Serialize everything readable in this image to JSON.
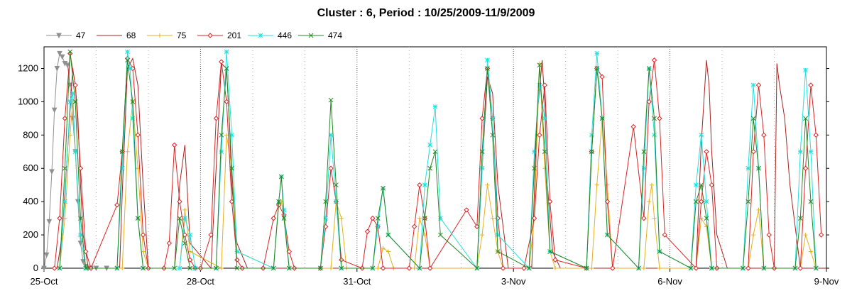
{
  "chart_data": {
    "type": "line",
    "title": "Cluster : 6, Period : 10/25/2009-11/9/2009",
    "xlabel": "",
    "ylabel": "",
    "x_range": [
      "25-Oct",
      "9-Nov"
    ],
    "x_ticks": [
      "25-Oct",
      "28-Oct",
      "31-Oct",
      "3-Nov",
      "6-Nov",
      "9-Nov"
    ],
    "x_tick_days": [
      0,
      3,
      6,
      9,
      12,
      15
    ],
    "ylim": [
      0,
      1330
    ],
    "y_ticks": [
      0,
      200,
      400,
      600,
      800,
      1000,
      1200
    ],
    "grid": "vertical dotted lines at each day",
    "legend_position": "top-left",
    "series": [
      {
        "name": "47",
        "color": "#909090",
        "marker": "triangle-down",
        "x": [
          0,
          0.05,
          0.1,
          0.15,
          0.2,
          0.25,
          0.3,
          0.35,
          0.4,
          0.45,
          0.5,
          0.55,
          0.6,
          0.65,
          0.7,
          0.75,
          0.8,
          0.85,
          0.9,
          1.0,
          1.2
        ],
        "y": [
          0,
          80,
          280,
          580,
          950,
          1200,
          1290,
          1270,
          1230,
          1220,
          1100,
          900,
          700,
          400,
          150,
          40,
          10,
          0,
          0,
          0,
          0
        ]
      },
      {
        "name": "68",
        "color": "#aa2222",
        "marker": "none",
        "x": [
          0.25,
          0.35,
          0.45,
          0.55,
          0.6,
          0.65,
          0.7,
          0.75,
          0.85,
          1.0,
          1.45,
          1.5,
          1.6,
          1.7,
          1.8,
          1.9,
          2.0,
          2.2,
          2.5,
          2.6,
          2.7,
          2.8,
          3.2,
          3.3,
          3.4,
          3.5,
          3.55,
          3.6,
          3.7,
          3.9,
          8.3,
          8.4,
          8.5,
          8.6,
          8.7,
          8.9,
          9.35,
          9.45,
          9.55,
          9.6,
          9.65,
          9.75,
          9.9,
          12.5,
          12.6,
          12.7,
          12.75,
          12.8,
          12.9,
          13.1,
          14.0,
          14.05,
          14.1,
          14.2,
          14.3,
          14.5,
          14.9,
          15.0
        ],
        "y": [
          0,
          200,
          700,
          1200,
          1100,
          900,
          500,
          200,
          0,
          0,
          0,
          450,
          1200,
          1260,
          1100,
          500,
          0,
          0,
          0,
          500,
          740,
          150,
          0,
          600,
          1230,
          1200,
          900,
          500,
          150,
          0,
          0,
          600,
          1150,
          1050,
          500,
          0,
          0,
          900,
          1250,
          1000,
          500,
          100,
          0,
          0,
          750,
          1250,
          1100,
          700,
          200,
          0,
          0,
          1230,
          1100,
          900,
          500,
          0,
          0,
          0
        ]
      },
      {
        "name": "75",
        "color": "#e8b020",
        "marker": "plus",
        "x": [
          0.3,
          0.4,
          0.5,
          0.55,
          0.6,
          0.7,
          0.8,
          1.5,
          1.6,
          1.7,
          1.8,
          1.9,
          2.0,
          2.6,
          2.7,
          2.8,
          3.4,
          3.5,
          3.6,
          3.7,
          4.4,
          4.5,
          4.55,
          4.6,
          4.7,
          5.5,
          5.6,
          5.7,
          5.8,
          6.4,
          6.5,
          6.6,
          6.7,
          7.1,
          7.2,
          7.3,
          7.4,
          8.3,
          8.4,
          8.5,
          8.6,
          8.7,
          8.8,
          9.3,
          9.4,
          9.5,
          9.6,
          9.7,
          9.8,
          10.5,
          10.6,
          10.7,
          10.8,
          10.9,
          11.5,
          11.6,
          11.65,
          11.7,
          11.8,
          12.5,
          12.6,
          12.7,
          12.8,
          13.5,
          13.6,
          13.7,
          13.8,
          14.5,
          14.6,
          14.7,
          14.8
        ],
        "y": [
          0,
          300,
          800,
          1000,
          700,
          200,
          0,
          0,
          700,
          1000,
          600,
          100,
          0,
          0,
          350,
          100,
          0,
          800,
          600,
          100,
          0,
          380,
          400,
          300,
          0,
          0,
          400,
          300,
          0,
          0,
          120,
          100,
          0,
          0,
          300,
          200,
          0,
          0,
          200,
          500,
          300,
          100,
          0,
          0,
          300,
          1230,
          600,
          100,
          0,
          0,
          500,
          900,
          500,
          0,
          0,
          400,
          500,
          300,
          0,
          0,
          300,
          250,
          0,
          0,
          200,
          350,
          0,
          0,
          200,
          100,
          0
        ]
      },
      {
        "name": "201",
        "color": "#dd2222",
        "marker": "diamond",
        "x": [
          0.2,
          0.3,
          0.4,
          0.5,
          0.6,
          0.7,
          0.8,
          0.9,
          1.4,
          1.5,
          1.6,
          1.7,
          1.8,
          1.9,
          2.0,
          2.3,
          2.4,
          2.5,
          2.6,
          2.7,
          2.8,
          2.9,
          3.0,
          3.2,
          3.3,
          3.4,
          3.5,
          3.6,
          3.7,
          3.8,
          4.2,
          4.4,
          4.5,
          4.6,
          4.7,
          4.8,
          5.3,
          5.4,
          5.5,
          5.6,
          5.7,
          6.1,
          6.2,
          6.3,
          6.4,
          6.5,
          7.0,
          7.1,
          7.2,
          7.3,
          7.4,
          8.1,
          8.3,
          8.4,
          8.5,
          8.6,
          8.7,
          8.8,
          9.2,
          9.4,
          9.5,
          9.6,
          9.7,
          9.8,
          10.4,
          10.5,
          10.6,
          10.7,
          10.8,
          10.9,
          11.3,
          11.5,
          11.6,
          11.7,
          11.8,
          11.9,
          12.5,
          12.6,
          12.7,
          12.8,
          12.9,
          13.5,
          13.6,
          13.7,
          13.8,
          13.9,
          14.0,
          14.5,
          14.6,
          14.7,
          14.8,
          14.9
        ],
        "y": [
          0,
          300,
          900,
          1290,
          1100,
          600,
          100,
          0,
          380,
          700,
          1260,
          1200,
          800,
          200,
          0,
          0,
          150,
          740,
          400,
          200,
          50,
          0,
          0,
          200,
          900,
          1240,
          1000,
          400,
          50,
          0,
          0,
          300,
          380,
          320,
          100,
          0,
          0,
          250,
          600,
          400,
          50,
          0,
          220,
          300,
          250,
          0,
          0,
          250,
          500,
          300,
          0,
          350,
          250,
          900,
          1200,
          900,
          300,
          0,
          0,
          300,
          800,
          1100,
          400,
          50,
          0,
          700,
          1200,
          1150,
          400,
          0,
          850,
          300,
          1000,
          1250,
          900,
          200,
          0,
          400,
          700,
          500,
          0,
          0,
          700,
          1100,
          800,
          200,
          0,
          0,
          600,
          1100,
          800,
          200
        ]
      },
      {
        "name": "446",
        "color": "#22e0e0",
        "marker": "star",
        "x": [
          0.3,
          0.4,
          0.5,
          0.55,
          0.6,
          0.7,
          0.8,
          1.4,
          1.5,
          1.6,
          1.65,
          1.7,
          1.8,
          1.9,
          2.6,
          2.7,
          2.8,
          2.9,
          3.3,
          3.4,
          3.5,
          3.6,
          3.7,
          4.4,
          4.5,
          4.55,
          4.6,
          4.7,
          5.3,
          5.4,
          5.5,
          5.6,
          5.7,
          6.3,
          6.4,
          6.5,
          6.6,
          7.2,
          7.3,
          7.4,
          7.5,
          7.6,
          8.3,
          8.4,
          8.5,
          8.6,
          8.7,
          9.3,
          9.4,
          9.5,
          9.6,
          9.7,
          10.4,
          10.5,
          10.6,
          10.7,
          10.8,
          11.4,
          11.5,
          11.6,
          11.7,
          11.8,
          12.4,
          12.5,
          12.6,
          12.7,
          12.8,
          13.4,
          13.5,
          13.6,
          13.7,
          13.8,
          14.4,
          14.5,
          14.6,
          14.7,
          14.8
        ],
        "y": [
          0,
          400,
          1000,
          1050,
          700,
          200,
          0,
          0,
          600,
          1300,
          1200,
          900,
          300,
          0,
          0,
          300,
          200,
          0,
          0,
          700,
          1300,
          800,
          100,
          0,
          400,
          550,
          350,
          0,
          0,
          300,
          800,
          400,
          0,
          0,
          250,
          480,
          200,
          0,
          500,
          740,
          970,
          300,
          0,
          600,
          1250,
          900,
          200,
          0,
          700,
          1100,
          900,
          100,
          0,
          800,
          1290,
          900,
          200,
          0,
          600,
          1200,
          800,
          100,
          0,
          500,
          800,
          400,
          0,
          0,
          600,
          1100,
          600,
          0,
          0,
          700,
          1190,
          700,
          0
        ]
      },
      {
        "name": "474",
        "color": "#228822",
        "marker": "cross",
        "x": [
          0.3,
          0.4,
          0.5,
          0.6,
          0.7,
          0.8,
          1.4,
          1.5,
          1.6,
          1.7,
          1.8,
          1.9,
          2.5,
          2.6,
          2.7,
          2.8,
          3.3,
          3.4,
          3.5,
          3.6,
          3.7,
          4.4,
          4.5,
          4.55,
          4.6,
          4.7,
          5.3,
          5.4,
          5.5,
          5.6,
          5.7,
          6.3,
          6.4,
          6.5,
          6.6,
          7.2,
          7.3,
          7.4,
          7.5,
          7.6,
          8.3,
          8.4,
          8.5,
          8.6,
          8.7,
          9.3,
          9.4,
          9.5,
          9.6,
          9.7,
          10.4,
          10.5,
          10.6,
          10.7,
          10.8,
          11.4,
          11.5,
          11.6,
          11.7,
          11.8,
          12.4,
          12.5,
          12.6,
          12.7,
          12.8,
          13.4,
          13.5,
          13.6,
          13.7,
          13.8,
          14.4,
          14.5,
          14.6,
          14.7,
          14.8
        ],
        "y": [
          0,
          600,
          1300,
          1000,
          300,
          0,
          0,
          700,
          1250,
          1000,
          300,
          0,
          0,
          300,
          150,
          0,
          0,
          800,
          1200,
          600,
          0,
          0,
          400,
          550,
          300,
          0,
          0,
          400,
          1010,
          500,
          0,
          0,
          300,
          480,
          200,
          0,
          300,
          600,
          700,
          200,
          0,
          700,
          1200,
          800,
          100,
          0,
          600,
          1220,
          700,
          100,
          0,
          700,
          1200,
          900,
          200,
          0,
          700,
          1200,
          900,
          100,
          0,
          400,
          500,
          300,
          0,
          0,
          400,
          900,
          600,
          0,
          0,
          300,
          900,
          400,
          0
        ]
      }
    ]
  }
}
